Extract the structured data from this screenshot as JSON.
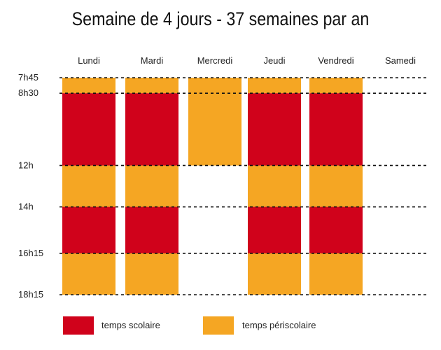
{
  "chart_data": {
    "type": "bar",
    "title": "Semaine de 4 jours - 37 semaines par an",
    "categories": [
      "Lundi",
      "Mardi",
      "Mercredi",
      "Jeudi",
      "Vendredi",
      "Samedi"
    ],
    "time_ticks": [
      {
        "label": "7h45",
        "value": 7.75
      },
      {
        "label": "8h30",
        "value": 8.5
      },
      {
        "label": "12h",
        "value": 12
      },
      {
        "label": "14h",
        "value": 14
      },
      {
        "label": "16h15",
        "value": 16.25
      },
      {
        "label": "18h15",
        "value": 18.25
      }
    ],
    "ylim": [
      7.75,
      18.25
    ],
    "series": [
      {
        "name": "temps scolaire",
        "color": "#d0021b",
        "segments": [
          {
            "day": "Lundi",
            "start": 8.5,
            "end": 12
          },
          {
            "day": "Lundi",
            "start": 14,
            "end": 16.25
          },
          {
            "day": "Mardi",
            "start": 8.5,
            "end": 12
          },
          {
            "day": "Mardi",
            "start": 14,
            "end": 16.25
          },
          {
            "day": "Jeudi",
            "start": 8.5,
            "end": 12
          },
          {
            "day": "Jeudi",
            "start": 14,
            "end": 16.25
          },
          {
            "day": "Vendredi",
            "start": 8.5,
            "end": 12
          },
          {
            "day": "Vendredi",
            "start": 14,
            "end": 16.25
          }
        ]
      },
      {
        "name": "temps périscolaire",
        "color": "#f5a623",
        "segments": [
          {
            "day": "Lundi",
            "start": 7.75,
            "end": 8.5
          },
          {
            "day": "Lundi",
            "start": 12,
            "end": 14
          },
          {
            "day": "Lundi",
            "start": 16.25,
            "end": 18.25
          },
          {
            "day": "Mardi",
            "start": 7.75,
            "end": 8.5
          },
          {
            "day": "Mardi",
            "start": 12,
            "end": 14
          },
          {
            "day": "Mardi",
            "start": 16.25,
            "end": 18.25
          },
          {
            "day": "Mercredi",
            "start": 7.75,
            "end": 12
          },
          {
            "day": "Jeudi",
            "start": 7.75,
            "end": 8.5
          },
          {
            "day": "Jeudi",
            "start": 12,
            "end": 14
          },
          {
            "day": "Jeudi",
            "start": 16.25,
            "end": 18.25
          },
          {
            "day": "Vendredi",
            "start": 7.75,
            "end": 8.5
          },
          {
            "day": "Vendredi",
            "start": 12,
            "end": 14
          },
          {
            "day": "Vendredi",
            "start": 16.25,
            "end": 18.25
          }
        ]
      }
    ],
    "legend_position": "bottom",
    "grid": "dashed horizontal lines at each tick"
  }
}
